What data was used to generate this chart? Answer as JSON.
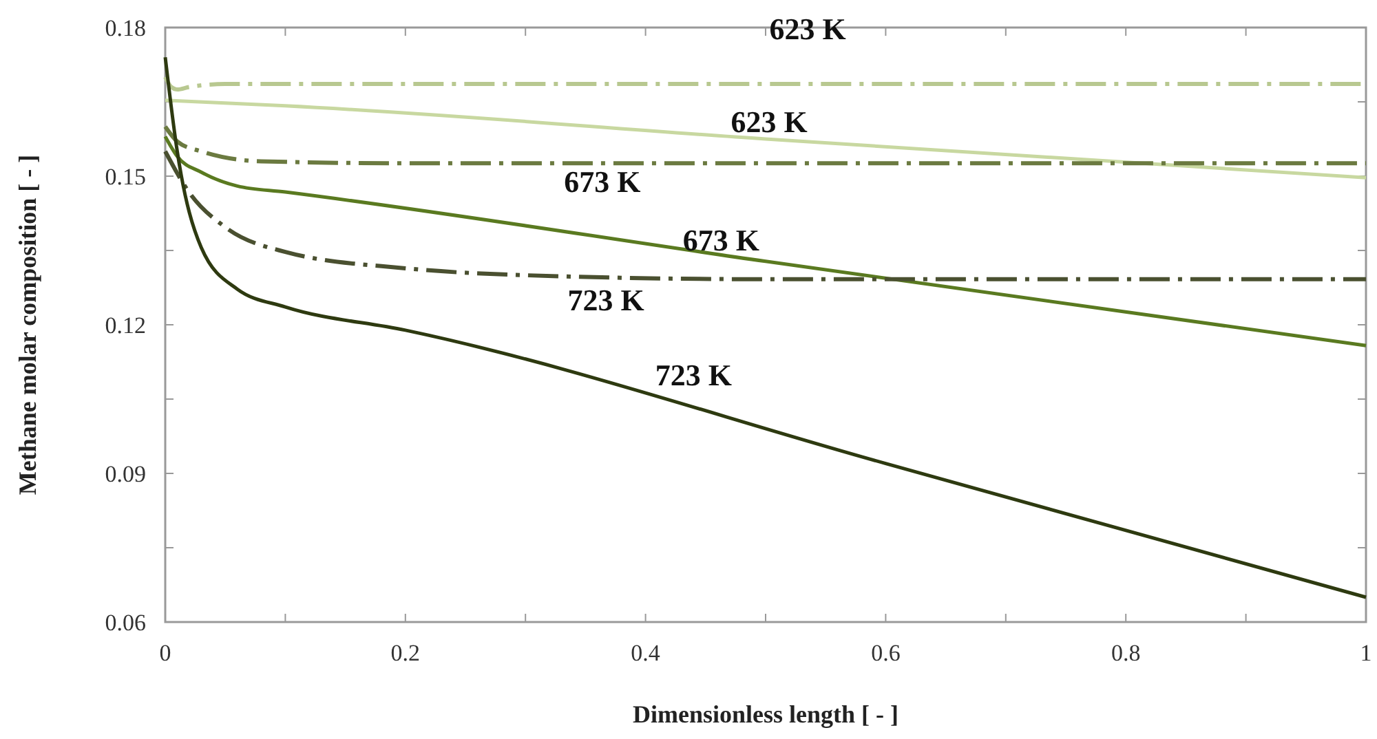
{
  "chart_data": {
    "type": "line",
    "xlabel": "Dimensionless length [ - ]",
    "ylabel": "Methane molar composition [ - ]",
    "xlim": [
      0,
      1
    ],
    "ylim": [
      0.06,
      0.18
    ],
    "xticks": [
      0,
      {
        "value": 0.1,
        "label": null
      },
      0.2,
      {
        "value": 0.3,
        "label": null
      },
      0.4,
      {
        "value": 0.5,
        "label": null
      },
      0.6,
      {
        "value": 0.7,
        "label": null
      },
      0.8,
      {
        "value": 0.9,
        "label": null
      },
      1
    ],
    "yticks": [
      0.06,
      {
        "value": 0.075,
        "label": null
      },
      0.09,
      {
        "value": 0.105,
        "label": null
      },
      0.12,
      {
        "value": 0.135,
        "label": null
      },
      0.15,
      {
        "value": 0.165,
        "label": null
      },
      0.18
    ],
    "grid": false,
    "marker": "none",
    "series": [
      {
        "name": "623 K",
        "color": "#b8c890",
        "line_style": "dashed",
        "x": [
          0,
          0.005,
          0.01,
          0.02,
          0.05,
          0.1,
          0.5,
          1
        ],
        "values": [
          0.17,
          0.168,
          0.1675,
          0.168,
          0.1686,
          0.1686,
          0.1686,
          0.1686
        ]
      },
      {
        "name": "623 K",
        "color": "#c8d8a0",
        "line_style": "solid",
        "x": [
          0,
          0.1,
          0.5,
          1
        ],
        "values": [
          0.1653,
          0.1642,
          0.1575,
          0.1497
        ]
      },
      {
        "name": "673 K",
        "color": "#6b7a40",
        "line_style": "dashed",
        "x": [
          0,
          0.01,
          0.03,
          0.08,
          0.2,
          0.5,
          1
        ],
        "values": [
          0.16,
          0.157,
          0.155,
          0.153,
          0.1526,
          0.1526,
          0.1526
        ]
      },
      {
        "name": "673 K",
        "color": "#5a7a20",
        "line_style": "solid",
        "x": [
          0,
          0.01,
          0.03,
          0.06,
          0.1,
          0.5,
          1
        ],
        "values": [
          0.158,
          0.154,
          0.1508,
          0.148,
          0.1468,
          0.1328,
          0.1158
        ]
      },
      {
        "name": "723 K",
        "color": "#4a5030",
        "line_style": "dashed",
        "x": [
          0,
          0.02,
          0.05,
          0.1,
          0.2,
          0.3,
          0.5,
          1
        ],
        "values": [
          0.155,
          0.1467,
          0.1397,
          0.1347,
          0.1314,
          0.13,
          0.1292,
          0.1292
        ]
      },
      {
        "name": "723 K",
        "color": "#2e3a10",
        "line_style": "solid",
        "x": [
          0,
          0.01,
          0.03,
          0.06,
          0.1,
          0.2,
          0.6,
          1
        ],
        "values": [
          0.174,
          0.155,
          0.1356,
          0.1272,
          0.1236,
          0.1189,
          0.092,
          0.065
        ]
      }
    ]
  }
}
